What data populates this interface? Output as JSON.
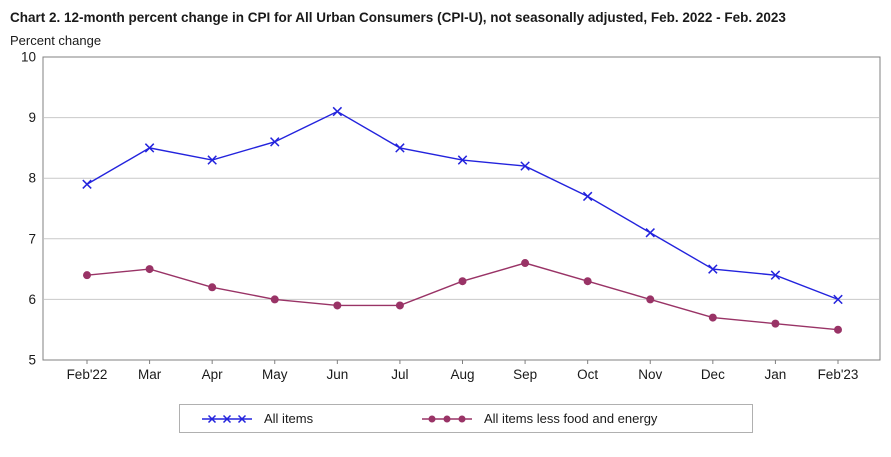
{
  "chart_data": {
    "type": "line",
    "title": "Chart 2. 12-month percent change in CPI for All Urban Consumers (CPI-U), not seasonally adjusted, Feb. 2022 - Feb. 2023",
    "ylabel": "Percent change",
    "xlabel": "",
    "categories": [
      "Feb'22",
      "Mar",
      "Apr",
      "May",
      "Jun",
      "Jul",
      "Aug",
      "Sep",
      "Oct",
      "Nov",
      "Dec",
      "Jan",
      "Feb'23"
    ],
    "series": [
      {
        "name": "All items",
        "marker": "x",
        "color": "#2323dd",
        "values": [
          7.9,
          8.5,
          8.3,
          8.6,
          9.1,
          8.5,
          8.3,
          8.2,
          7.7,
          7.1,
          6.5,
          6.4,
          6.0
        ]
      },
      {
        "name": "All items less food and energy",
        "marker": "circle",
        "color": "#993366",
        "values": [
          6.4,
          6.5,
          6.2,
          6.0,
          5.9,
          5.9,
          6.3,
          6.6,
          6.3,
          6.0,
          5.7,
          5.6,
          5.5
        ]
      }
    ],
    "ylim": [
      5,
      10
    ],
    "yticks": [
      5,
      6,
      7,
      8,
      9,
      10
    ],
    "grid": true,
    "legend_position": "bottom"
  },
  "colors": {
    "grid": "#c9c9c9",
    "plot_border": "#808080",
    "tick": "#808080",
    "text": "#1a1a1a",
    "background": "#ffffff"
  }
}
